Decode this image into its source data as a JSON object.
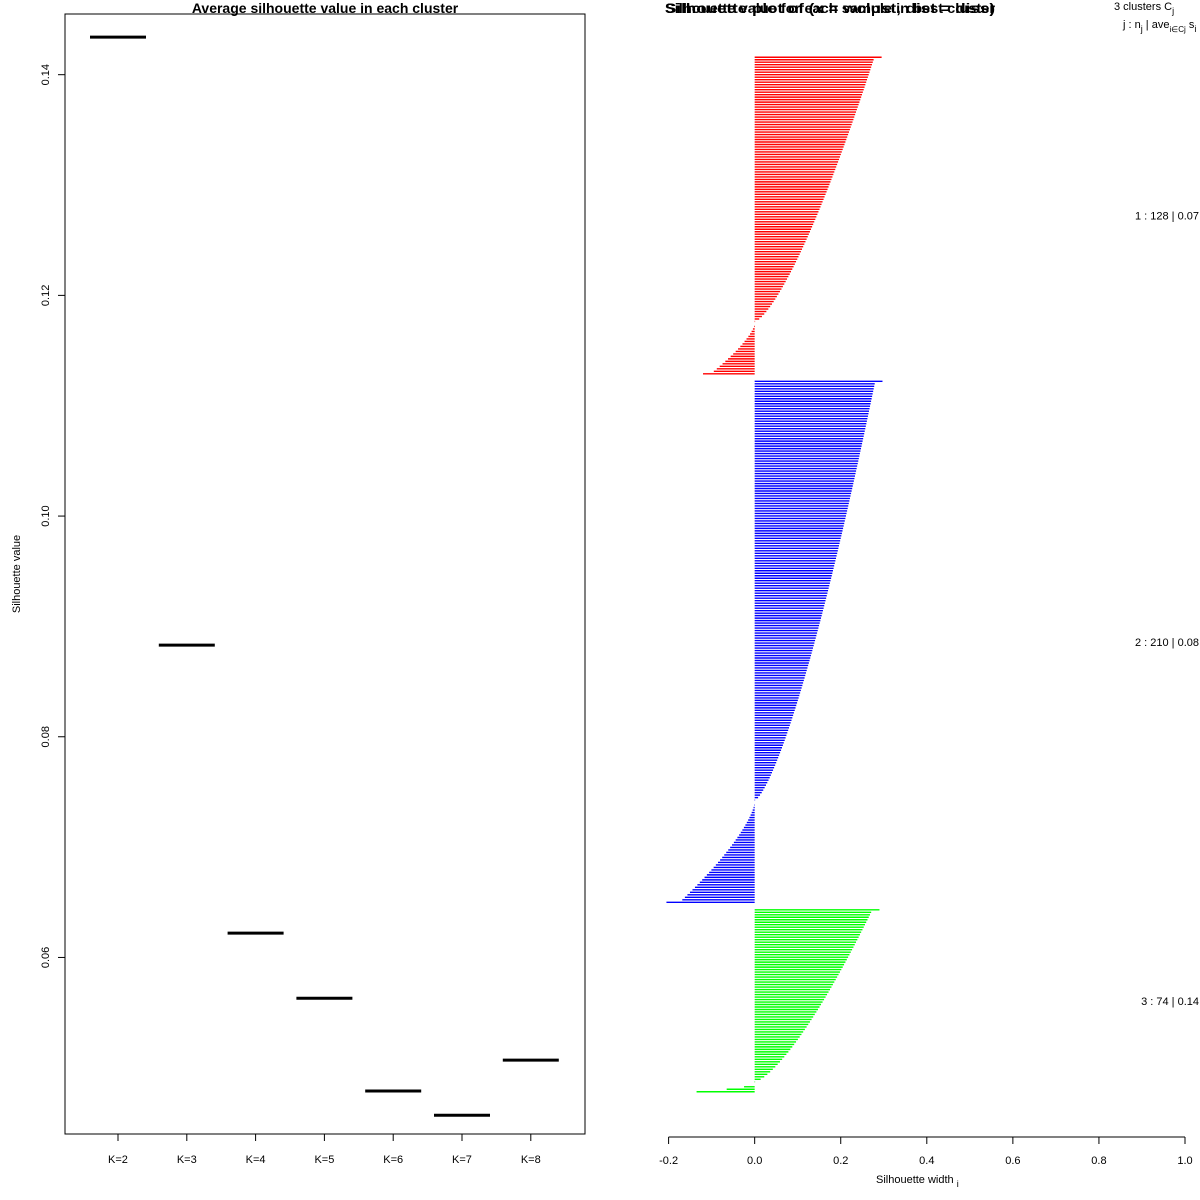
{
  "chart_data": [
    {
      "type": "line",
      "title": "Average silhouette value in each cluster",
      "xlabel": "",
      "ylabel": "Silhouette value",
      "categories": [
        "K=2",
        "K=3",
        "K=4",
        "K=5",
        "K=6",
        "K=7",
        "K=8"
      ],
      "values": [
        0.1434,
        0.0883,
        0.0622,
        0.0563,
        0.0479,
        0.0457,
        0.0507
      ],
      "ylim": [
        0.044,
        0.1455
      ],
      "yticks": [
        0.06,
        0.08,
        0.1,
        0.12,
        0.14
      ],
      "ytick_labels": [
        "0.06",
        "0.08",
        "0.10",
        "0.12",
        "0.14"
      ],
      "grid": false
    },
    {
      "type": "bar",
      "orientation": "horizontal",
      "title": "Silhouette value for each sample in best cluster",
      "overlapping_title": "Silhouette plot of (x = wclust, dist = diss)",
      "xlabel": "Silhouette width",
      "xlabel_sub": "i",
      "xlim": [
        -0.2,
        1.0
      ],
      "xticks": [
        -0.2,
        0.0,
        0.2,
        0.4,
        0.6,
        0.8,
        1.0
      ],
      "xtick_labels": [
        "-0.2",
        "0.0",
        "0.2",
        "0.4",
        "0.6",
        "0.8",
        "1.0"
      ],
      "header": {
        "line1_prefix": "3  clusters  C",
        "line1_sub": "j",
        "line2_prefix": "j :  n",
        "line2_sub1": "j",
        "line2_mid": " | ave",
        "line2_sub2": "i∈Cj",
        "line2_suffix": "  s",
        "line2_sub3": "i"
      },
      "series": [
        {
          "name": "1",
          "color": "#ff0000",
          "n": 128,
          "ave": "0.07",
          "label": "1 :  128  |  0.07",
          "max": 0.295,
          "min": -0.12,
          "positive_count": 107
        },
        {
          "name": "2",
          "color": "#0000ff",
          "n": 210,
          "ave": "0.08",
          "label": "2 :  210  |  0.08",
          "max": 0.297,
          "min": -0.205,
          "positive_count": 169
        },
        {
          "name": "3",
          "color": "#00ff00",
          "n": 74,
          "ave": "0.14",
          "label": "3 :  74  |  0.14",
          "max": 0.29,
          "min": -0.135,
          "positive_count": 70
        }
      ]
    }
  ]
}
